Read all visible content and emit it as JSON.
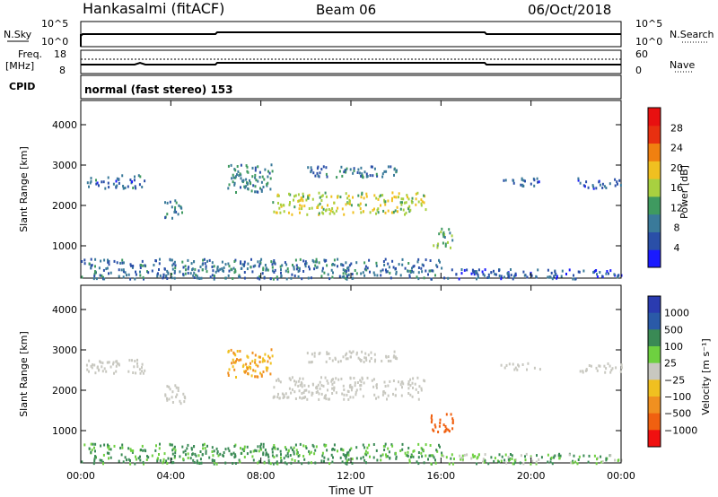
{
  "header": {
    "station": "Hankasalmi (fitACF)",
    "beam": "Beam 06",
    "date": "06/Oct/2018"
  },
  "top_panels": {
    "nsky_label": "N.Sky",
    "nsky_ticks": [
      "10^5",
      "10^0"
    ],
    "nsearch_label": "N.Search",
    "nsearch_ticks": [
      "10^5",
      "10^0"
    ],
    "freq_label_line1": "Freq.",
    "freq_label_line2": "[MHz]",
    "freq_ticks": [
      "18",
      "8"
    ],
    "nave_label": "Nave",
    "nave_ticks": [
      "60",
      "0"
    ],
    "cpid_label": "CPID",
    "cpid_text": "normal (fast stereo) 153"
  },
  "colors": {
    "power_scale": [
      "#1a1aff",
      "#2a4fa8",
      "#3a7a9a",
      "#3f9a60",
      "#a8d040",
      "#f0c020",
      "#f08010",
      "#e83010",
      "#e81010"
    ],
    "velocity_scale": [
      "#2a3bb0",
      "#2a5aa8",
      "#3a8a55",
      "#6ed040",
      "#c8c8c0",
      "#f0c020",
      "#f09020",
      "#f06010",
      "#f01010"
    ],
    "ground_scatter": "#bebebe"
  },
  "chart_data": [
    {
      "type": "heatmap",
      "name": "power-panel",
      "ylabel": "Slant Range [km]",
      "yticks": [
        "1000",
        "2000",
        "3000",
        "4000"
      ],
      "ylim": [
        200,
        4600
      ],
      "xlim": [
        0,
        24
      ],
      "colorbar_label": "Power [dB]",
      "colorbar_ticks": [
        "4",
        "8",
        "12",
        "16",
        "20",
        "24",
        "28"
      ],
      "colorbar_range": [
        0,
        32
      ],
      "regions": [
        {
          "t0": 0.2,
          "t1": 2.8,
          "r0": 2450,
          "r1": 2780,
          "value": 7
        },
        {
          "t0": 3.7,
          "t1": 4.6,
          "r0": 1700,
          "r1": 2150,
          "value": 9
        },
        {
          "t0": 6.5,
          "t1": 8.5,
          "r0": 2350,
          "r1": 3050,
          "value": 10
        },
        {
          "t0": 8.5,
          "t1": 15.3,
          "r0": 1800,
          "r1": 2350,
          "value": 17
        },
        {
          "t0": 10.0,
          "t1": 14.0,
          "r0": 2700,
          "r1": 3000,
          "value": 8
        },
        {
          "t0": 15.5,
          "t1": 16.5,
          "r0": 950,
          "r1": 1450,
          "value": 13
        },
        {
          "t0": 18.6,
          "t1": 20.5,
          "r0": 2500,
          "r1": 2700,
          "value": 7
        },
        {
          "t0": 22.0,
          "t1": 24.0,
          "r0": 2450,
          "r1": 2700,
          "value": 6
        },
        {
          "t0": 0.0,
          "t1": 16.0,
          "r0": 200,
          "r1": 700,
          "value": 8
        },
        {
          "t0": 16.0,
          "t1": 24.0,
          "r0": 200,
          "r1": 450,
          "value": 6
        }
      ]
    },
    {
      "type": "heatmap",
      "name": "velocity-panel",
      "ylabel": "Slant Range [km]",
      "yticks": [
        "1000",
        "2000",
        "3000",
        "4000"
      ],
      "ylim": [
        200,
        4600
      ],
      "xlim": [
        0,
        24
      ],
      "xlabel": "Time UT",
      "xticks": [
        "00:00",
        "04:00",
        "08:00",
        "12:00",
        "16:00",
        "20:00",
        "00:00"
      ],
      "colorbar_label": "Velocity [m s⁻¹]",
      "colorbar_ticks": [
        "1000",
        "500",
        "100",
        "25",
        "−25",
        "−100",
        "−500",
        "−1000"
      ],
      "regions": [
        {
          "t0": 0.2,
          "t1": 2.8,
          "r0": 2450,
          "r1": 2780,
          "value": 0
        },
        {
          "t0": 3.7,
          "t1": 4.6,
          "r0": 1700,
          "r1": 2150,
          "value": 0
        },
        {
          "t0": 6.5,
          "t1": 8.5,
          "r0": 2350,
          "r1": 3050,
          "value": -100
        },
        {
          "t0": 8.5,
          "t1": 15.3,
          "r0": 1800,
          "r1": 2350,
          "value": 0
        },
        {
          "t0": 10.0,
          "t1": 14.0,
          "r0": 2700,
          "r1": 3000,
          "value": 0
        },
        {
          "t0": 15.5,
          "t1": 16.5,
          "r0": 950,
          "r1": 1450,
          "value": -300
        },
        {
          "t0": 18.6,
          "t1": 20.5,
          "r0": 2500,
          "r1": 2700,
          "value": 0
        },
        {
          "t0": 22.0,
          "t1": 24.0,
          "r0": 2450,
          "r1": 2700,
          "value": 0
        },
        {
          "t0": 0.0,
          "t1": 16.0,
          "r0": 200,
          "r1": 700,
          "value": 60
        },
        {
          "t0": 16.0,
          "t1": 24.0,
          "r0": 200,
          "r1": 450,
          "value": 40
        }
      ]
    }
  ]
}
